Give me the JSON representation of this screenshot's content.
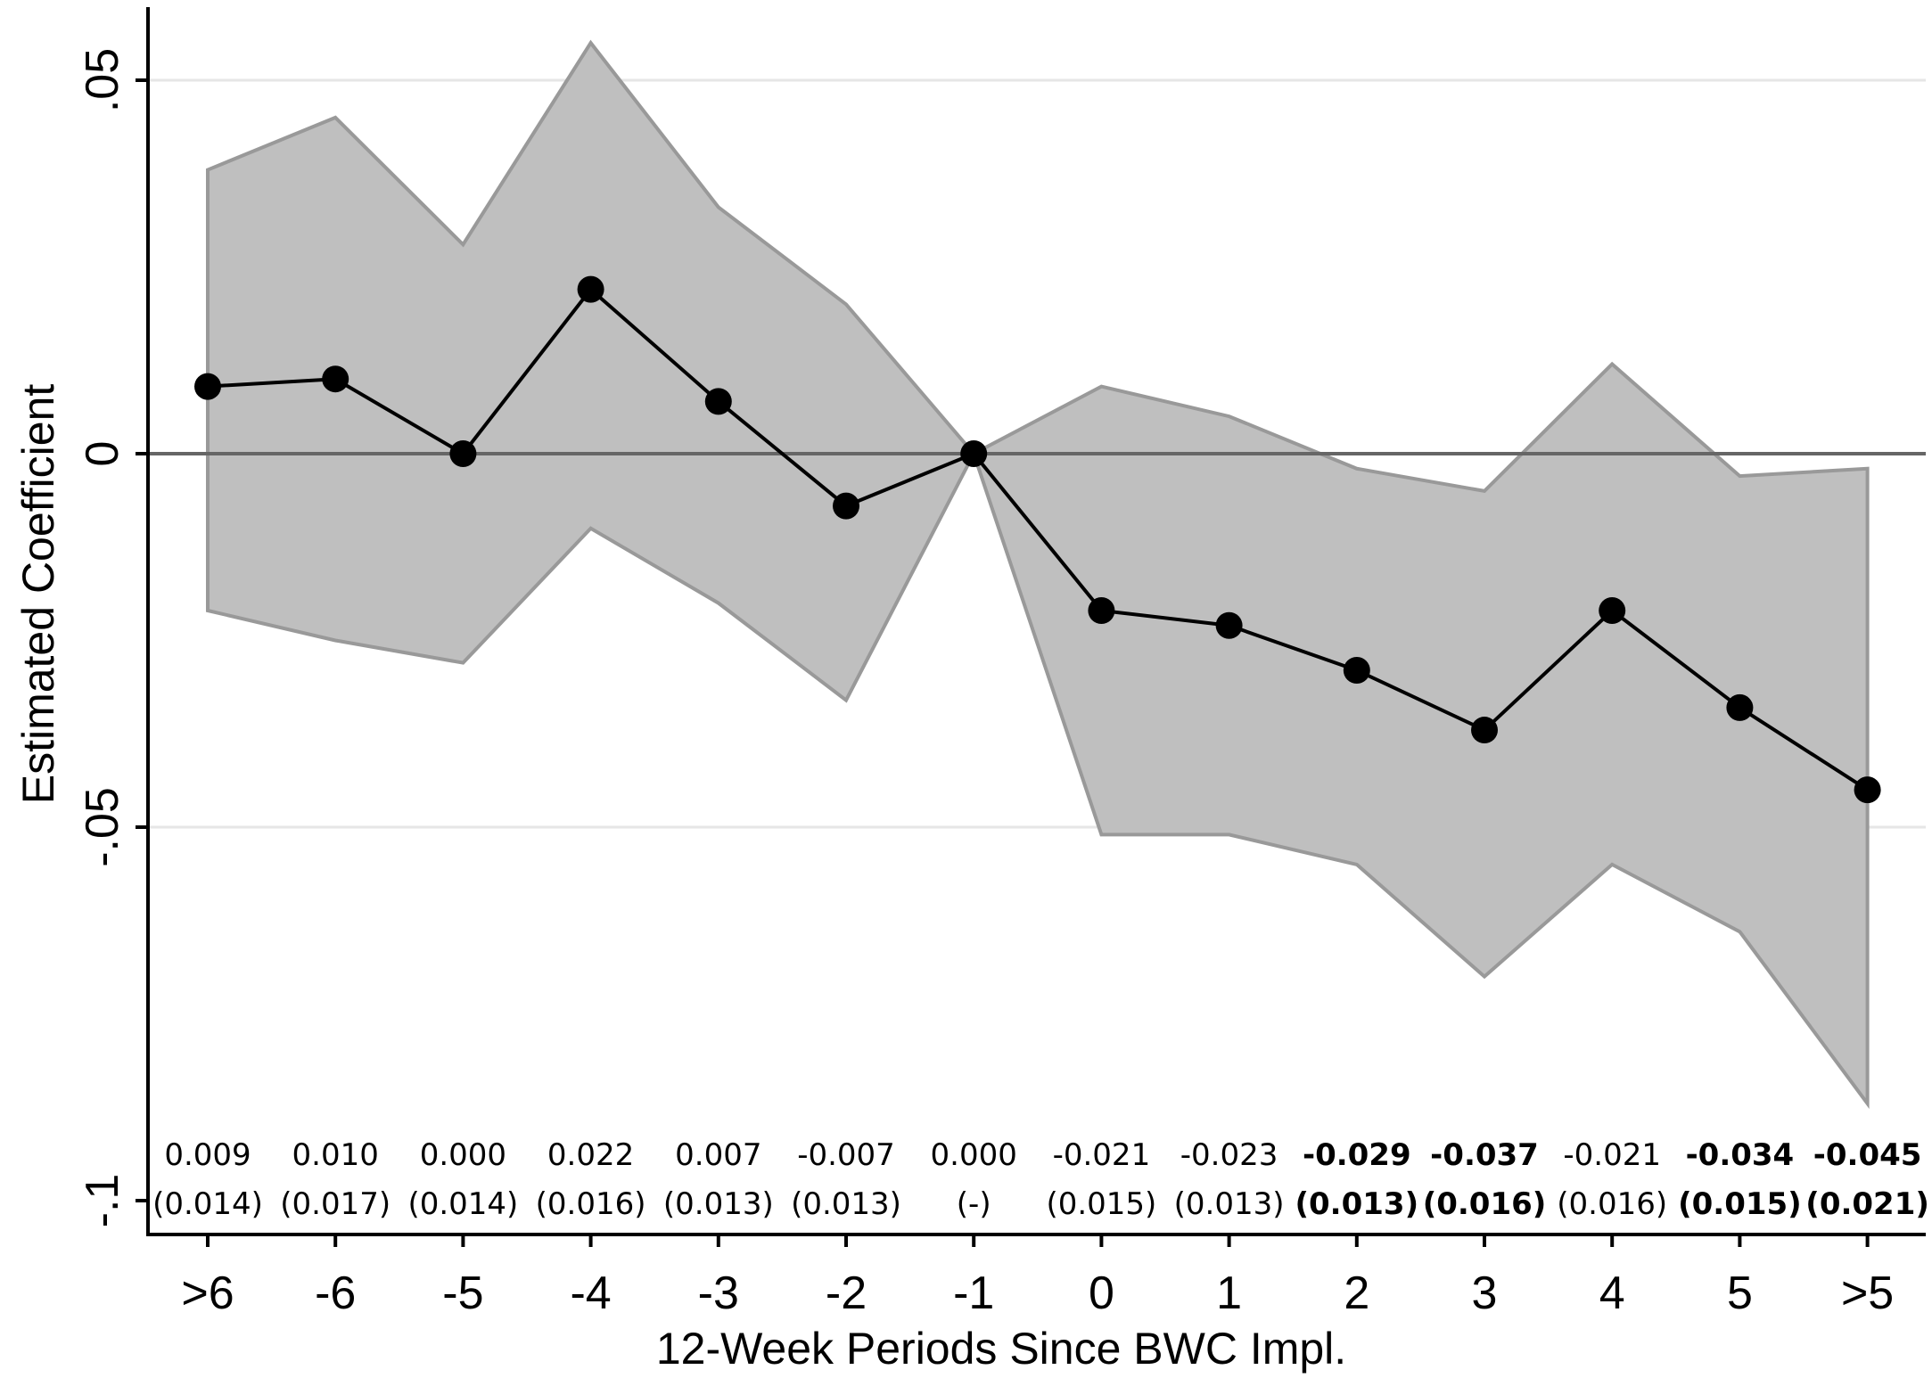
{
  "chart_data": {
    "type": "line",
    "title": "",
    "xlabel": "12-Week Periods Since BWC Impl.",
    "ylabel": "Estimated Coefficient",
    "ylim": [
      -0.1,
      0.06
    ],
    "y_ticks": [
      {
        "value": 0.05,
        "label": ".05"
      },
      {
        "value": 0,
        "label": "0"
      },
      {
        "value": -0.05,
        "label": "-.05"
      },
      {
        "value": -0.1,
        "label": "-.1"
      }
    ],
    "grid": true,
    "reference_line": 0,
    "categories": [
      ">6",
      "-6",
      "-5",
      "-4",
      "-3",
      "-2",
      "-1",
      "0",
      "1",
      "2",
      "3",
      "4",
      "5",
      ">5"
    ],
    "series": [
      {
        "values": [
          0.009,
          0.01,
          0.0,
          0.022,
          0.007,
          -0.007,
          0.0,
          -0.021,
          -0.023,
          -0.029,
          -0.037,
          -0.021,
          -0.034,
          -0.045
        ],
        "ci_upper": [
          0.038,
          0.045,
          0.028,
          0.055,
          0.033,
          0.02,
          0.0,
          0.009,
          0.005,
          -0.002,
          -0.005,
          0.012,
          -0.003,
          -0.002
        ],
        "ci_lower": [
          -0.021,
          -0.025,
          -0.028,
          -0.01,
          -0.02,
          -0.033,
          0.0,
          -0.051,
          -0.051,
          -0.055,
          -0.07,
          -0.055,
          -0.064,
          -0.087
        ]
      }
    ],
    "annotations": {
      "coefficients": [
        "0.009",
        "0.010",
        "0.000",
        "0.022",
        "0.007",
        "-0.007",
        "0.000",
        "-0.021",
        "-0.023",
        "-0.029",
        "-0.037",
        "-0.021",
        "-0.034",
        "-0.045"
      ],
      "std_errors": [
        "(0.014)",
        "(0.017)",
        "(0.014)",
        "(0.016)",
        "(0.013)",
        "(0.013)",
        "(-)",
        "(0.015)",
        "(0.013)",
        "(0.013)",
        "(0.016)",
        "(0.016)",
        "(0.015)",
        "(0.021)"
      ],
      "significant": [
        false,
        false,
        false,
        false,
        false,
        false,
        false,
        false,
        false,
        true,
        true,
        false,
        true,
        true
      ]
    },
    "colors": {
      "ci_fill": "#bfbfbf",
      "ci_stroke": "#999999",
      "line": "#000000",
      "marker": "#000000",
      "reference_line": "#666666",
      "grid": "#e6e6e6"
    }
  }
}
